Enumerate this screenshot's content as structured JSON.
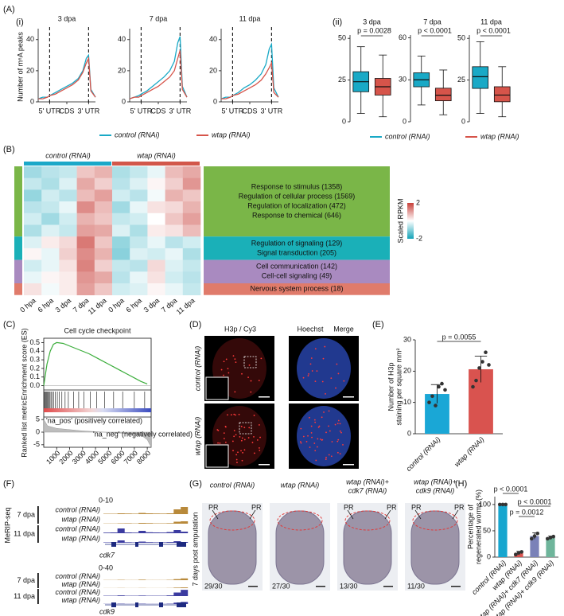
{
  "figure": {
    "panel_labels": [
      "(A)",
      "(B)",
      "(C)",
      "(D)",
      "(E)",
      "(F)",
      "(G)",
      "(H)"
    ],
    "sub_labels": [
      "(i)",
      "(ii)"
    ],
    "microscopy": {
      "col_labels": [
        {
          "text": "H3p / Cy3",
          "color": "#d62828"
        },
        {
          "text": "Hoechst",
          "color": "#2a4fb0"
        },
        {
          "text": "Merge",
          "color": "#111111"
        }
      ],
      "row_labels": [
        "control (RNAi)",
        "wtap (RNAi)"
      ]
    },
    "tracks": {
      "assay": "MeRIP-seq",
      "genes": [
        {
          "name": "cdk7",
          "range": "0-10",
          "ylim": [
            0,
            10
          ],
          "groups": [
            {
              "label": "7 dpa",
              "color": "#b8893a",
              "tracks": [
                {
                  "name": "control (RNAi)",
                  "values": [
                    0.5,
                    0.5,
                    1,
                    0.8,
                    0.6,
                    1.5,
                    1,
                    0.8,
                    0.7,
                    1,
                    6,
                    9
                  ]
                },
                {
                  "name": "wtap (RNAi)",
                  "values": [
                    0.3,
                    0.3,
                    0.5,
                    0.6,
                    0.4,
                    1,
                    0.8,
                    0.5,
                    0.5,
                    0.7,
                    2.5,
                    3
                  ]
                }
              ]
            },
            {
              "label": "11 dpa",
              "color": "#3b3ba0",
              "tracks": [
                {
                  "name": "control (RNAi)",
                  "values": [
                    0.8,
                    1,
                    6,
                    1,
                    0.8,
                    3,
                    1.2,
                    1,
                    0.9,
                    1.5,
                    4,
                    2
                  ]
                },
                {
                  "name": "wtap (RNAi)",
                  "values": [
                    0.5,
                    0.6,
                    3,
                    0.7,
                    0.5,
                    1.5,
                    0.8,
                    0.6,
                    0.6,
                    0.9,
                    2,
                    1
                  ]
                }
              ]
            }
          ]
        },
        {
          "name": "cdk9",
          "range": "0-40",
          "ylim": [
            0,
            40
          ],
          "groups": [
            {
              "label": "7 dpa",
              "color": "#b8893a",
              "tracks": [
                {
                  "name": "control (RNAi)",
                  "values": [
                    1,
                    1,
                    2,
                    1,
                    1,
                    3,
                    1,
                    1,
                    1,
                    2,
                    6,
                    10
                  ]
                },
                {
                  "name": "wtap (RNAi)",
                  "values": [
                    0.5,
                    0.5,
                    1,
                    0.5,
                    0.5,
                    1,
                    0.5,
                    0.5,
                    0.5,
                    1,
                    3,
                    4
                  ]
                }
              ]
            },
            {
              "label": "11 dpa",
              "color": "#3b3ba0",
              "tracks": [
                {
                  "name": "control (RNAi)",
                  "values": [
                    2,
                    2,
                    4,
                    2,
                    2,
                    3,
                    2,
                    2,
                    2,
                    4,
                    20,
                    35
                  ]
                },
                {
                  "name": "wtap (RNAi)",
                  "values": [
                    1,
                    1,
                    2,
                    1,
                    1,
                    2,
                    1,
                    1,
                    1,
                    2,
                    8,
                    12
                  ]
                }
              ]
            }
          ]
        }
      ]
    },
    "worms": {
      "side_label": "7 days post amputation",
      "panels": [
        {
          "title": [
            "control (RNAi)"
          ],
          "count": "29/30",
          "marks": [
            "PR",
            "PR"
          ]
        },
        {
          "title": [
            "wtap (RNAi)"
          ],
          "count": "27/30",
          "marks": []
        },
        {
          "title": [
            "wtap (RNAi)+",
            "cdk7 (RNAi)"
          ],
          "count": "13/30",
          "marks": [
            "PR",
            "PR"
          ]
        },
        {
          "title": [
            "wtap (RNAi)+",
            "cdk9 (RNAi)"
          ],
          "count": "11/30",
          "marks": [
            "PR",
            "PR"
          ]
        }
      ]
    }
  },
  "chart_data": [
    {
      "type": "line",
      "title": "3 dpa",
      "ylabel": "Number of m⁶A peaks",
      "x": [
        0,
        8,
        16,
        20,
        30,
        40,
        50,
        60,
        70,
        78,
        84,
        88,
        92,
        100
      ],
      "xlim": [
        0,
        100
      ],
      "xticks": [
        {
          "value": 20,
          "label": "5' UTR"
        },
        {
          "value": 50,
          "label": "CDS"
        },
        {
          "value": 88,
          "label": "3' UTR"
        }
      ],
      "boundaries": [
        20,
        88
      ],
      "ylim": [
        0,
        45
      ],
      "yticks": [
        0,
        20,
        40
      ],
      "series": [
        {
          "name": "control (RNAi)",
          "color": "#19a9c6",
          "values": [
            2,
            3,
            3,
            4,
            6,
            8,
            10,
            12,
            15,
            20,
            28,
            30,
            8,
            3
          ]
        },
        {
          "name": "wtap (RNAi)",
          "color": "#d6544a",
          "values": [
            2,
            2,
            3,
            4,
            5,
            7,
            9,
            11,
            14,
            19,
            25,
            28,
            7,
            3
          ]
        }
      ]
    },
    {
      "type": "line",
      "title": "7 dpa",
      "x": [
        0,
        8,
        16,
        20,
        30,
        40,
        50,
        60,
        70,
        78,
        84,
        88,
        92,
        100
      ],
      "xlim": [
        0,
        100
      ],
      "xticks": [
        {
          "value": 20,
          "label": "5' UTR"
        },
        {
          "value": 50,
          "label": "CDS"
        },
        {
          "value": 88,
          "label": "3' UTR"
        }
      ],
      "boundaries": [
        20,
        88
      ],
      "ylim": [
        0,
        45
      ],
      "yticks": [
        0,
        20,
        40
      ],
      "series": [
        {
          "color": "#19a9c6",
          "values": [
            2,
            3,
            4,
            5,
            7,
            10,
            13,
            16,
            20,
            26,
            38,
            42,
            10,
            3
          ]
        },
        {
          "color": "#d6544a",
          "values": [
            2,
            3,
            3,
            4,
            6,
            8,
            10,
            13,
            16,
            20,
            28,
            33,
            8,
            3
          ]
        }
      ]
    },
    {
      "type": "line",
      "title": "11 dpa",
      "x": [
        0,
        8,
        16,
        20,
        30,
        40,
        50,
        60,
        70,
        78,
        84,
        88,
        92,
        100
      ],
      "xlim": [
        0,
        100
      ],
      "xticks": [
        {
          "value": 20,
          "label": "5' UTR"
        },
        {
          "value": 50,
          "label": "CDS"
        },
        {
          "value": 88,
          "label": "3' UTR"
        }
      ],
      "boundaries": [
        20,
        88
      ],
      "ylim": [
        0,
        45
      ],
      "yticks": [
        0,
        20,
        40
      ],
      "series": [
        {
          "color": "#19a9c6",
          "values": [
            2,
            3,
            3,
            4,
            6,
            9,
            11,
            14,
            18,
            24,
            34,
            37,
            9,
            3
          ]
        },
        {
          "color": "#d6544a",
          "values": [
            2,
            2,
            3,
            4,
            5,
            7,
            9,
            11,
            14,
            18,
            22,
            25,
            6,
            3
          ]
        }
      ]
    },
    {
      "type": "box",
      "title": "3 dpa",
      "annotation": "p = 0.0028",
      "ylim": [
        0,
        52
      ],
      "yticks": [
        0,
        25,
        50
      ],
      "series": [
        {
          "name": "control (RNAi)",
          "color": "#19a9c6",
          "stats": [
            5,
            18,
            24,
            30,
            45
          ]
        },
        {
          "name": "wtap (RNAi)",
          "color": "#d6544a",
          "stats": [
            3,
            16,
            21,
            26,
            40
          ]
        }
      ]
    },
    {
      "type": "box",
      "title": "7 dpa",
      "annotation": "p < 0.0001",
      "ylim": [
        0,
        62
      ],
      "yticks": [
        0,
        30,
        60
      ],
      "series": [
        {
          "color": "#19a9c6",
          "stats": [
            12,
            25,
            30,
            35,
            47
          ]
        },
        {
          "color": "#d6544a",
          "stats": [
            5,
            15,
            19,
            24,
            37
          ]
        }
      ]
    },
    {
      "type": "box",
      "title": "11 dpa",
      "annotation": "p < 0.0001",
      "ylim": [
        0,
        52
      ],
      "yticks": [
        0,
        25,
        50
      ],
      "series": [
        {
          "color": "#19a9c6",
          "stats": [
            5,
            20,
            27,
            33,
            48
          ]
        },
        {
          "color": "#d6544a",
          "stats": [
            3,
            12,
            16,
            21,
            33
          ]
        }
      ]
    },
    {
      "type": "heatmap",
      "columns": [
        "0 hpa",
        "6 hpa",
        "3 dpa",
        "7 dpa",
        "11 dpa",
        "0 hpa",
        "6 hpa",
        "3 dpa",
        "7 dpa",
        "11 dpa"
      ],
      "groups": [
        {
          "label": "control (RNAi)",
          "color": "#1ba8c8"
        },
        {
          "label": "wtap (RNAi)",
          "color": "#d2574a"
        }
      ],
      "colorbar": {
        "label": "Scaled RPKM",
        "vlim": [
          -2,
          2
        ],
        "ticks": [
          2,
          -2
        ],
        "colors": [
          "#14a3b8",
          "#ffffff",
          "#c8403a"
        ]
      },
      "clusters": [
        {
          "color": "#7ab648",
          "terms": [
            "Response to stimulus (1358)",
            "Regulation of cellular process (1569)",
            "Regulation of localization (472)",
            "Response to chemical (646)"
          ],
          "values": [
            [
              -0.8,
              -0.6,
              -0.5,
              0.6,
              0.8,
              -0.7,
              -0.5,
              -0.2,
              0.7,
              0.9
            ],
            [
              -0.5,
              -0.7,
              -0.3,
              0.9,
              0.5,
              -0.6,
              -0.3,
              0.1,
              0.5,
              1.1
            ],
            [
              -0.9,
              -0.4,
              -0.6,
              0.7,
              1.0,
              -0.4,
              -0.6,
              -0.1,
              0.8,
              0.6
            ],
            [
              -0.6,
              -0.5,
              -0.2,
              1.2,
              0.7,
              -0.8,
              -0.2,
              0.3,
              0.4,
              0.8
            ],
            [
              -0.4,
              -0.8,
              -0.4,
              0.8,
              0.6,
              -0.5,
              -0.4,
              0.0,
              0.6,
              1.0
            ],
            [
              -0.7,
              -0.3,
              -0.5,
              1.0,
              0.9,
              -0.3,
              -0.7,
              0.2,
              0.3,
              0.7
            ]
          ]
        },
        {
          "color": "#1ab0b8",
          "terms": [
            "Regulation of signaling (129)",
            "Signal transduction (205)"
          ],
          "values": [
            [
              -0.3,
              0.2,
              0.4,
              1.4,
              0.6,
              -0.9,
              -0.5,
              -0.2,
              -0.6,
              -0.4
            ],
            [
              0.1,
              -0.2,
              0.5,
              1.2,
              0.8,
              -1.0,
              -0.3,
              -0.4,
              -0.2,
              -0.7
            ]
          ]
        },
        {
          "color": "#a98ac0",
          "terms": [
            "Cell communication (142)",
            "Cell-cell signaling (49)"
          ],
          "values": [
            [
              -0.4,
              -0.2,
              0.3,
              1.3,
              0.5,
              -0.5,
              -0.6,
              0.4,
              -0.3,
              -0.5
            ],
            [
              -0.2,
              0.1,
              0.2,
              1.1,
              0.9,
              -0.6,
              -0.2,
              0.3,
              -0.4,
              -0.6
            ]
          ]
        },
        {
          "color": "#e07b6b",
          "terms": [
            "Nervous system process (18)"
          ],
          "values": [
            [
              0.3,
              -0.1,
              0.2,
              1.0,
              0.6,
              -0.4,
              -0.3,
              0.1,
              -0.2,
              -0.5
            ]
          ]
        }
      ]
    },
    {
      "type": "gsea",
      "title": "Cell cycle checkpoint",
      "ylabel": "Enrichment score (ES)",
      "color": "#3cae3c",
      "x": [
        0,
        250,
        500,
        750,
        1000,
        1500,
        2000,
        2500,
        3000,
        3500,
        4000,
        4500,
        5000,
        5500,
        6000,
        6500,
        7000,
        7500,
        8000
      ],
      "values": [
        0,
        0.25,
        0.4,
        0.48,
        0.5,
        0.49,
        0.46,
        0.43,
        0.4,
        0.37,
        0.33,
        0.29,
        0.25,
        0.21,
        0.17,
        0.13,
        0.09,
        0.05,
        0.02
      ],
      "xlim": [
        0,
        8300
      ],
      "xticks": [
        1000,
        2000,
        3000,
        4000,
        5000,
        6000,
        7000,
        8000
      ],
      "ylim": [
        -0.05,
        0.55
      ],
      "yticks": [
        {
          "value": 0,
          "label": "0.0"
        },
        0.1,
        0.2,
        0.3,
        0.4,
        0.5
      ],
      "hits": [
        30,
        80,
        150,
        200,
        260,
        320,
        400,
        480,
        560,
        650,
        780,
        900,
        1050,
        1200,
        1400,
        1650,
        1900,
        2300,
        2700,
        3100,
        3600,
        4100,
        4700,
        5400,
        6100,
        7000,
        7800
      ],
      "metric_label": "Ranked list metric",
      "metric_x": [
        0,
        300,
        1000,
        2000,
        3000,
        4000,
        5000,
        6000,
        7000,
        7600,
        8000,
        8300
      ],
      "metric": [
        5,
        2.5,
        1.5,
        1,
        0.5,
        0.2,
        -0.1,
        -0.4,
        -0.9,
        -1.5,
        -3,
        -6
      ],
      "metric_ylim": [
        -6,
        6
      ],
      "metric_yticks": [
        5,
        0,
        -5
      ],
      "pos_label": "'na_pos' (positively correlated)",
      "neg_label": "'na_neg' (negatively correlated)"
    },
    {
      "type": "bar",
      "ylabel": [
        "Number of H3p",
        "staining per square mm²"
      ],
      "categories": [
        "control (RNAi)",
        "wtap (RNAi)"
      ],
      "values": [
        12.7,
        20.6
      ],
      "errors": [
        3,
        4.2
      ],
      "colors": [
        "#1aa7d6",
        "#d9534f"
      ],
      "points": [
        [
          10,
          12,
          9,
          15,
          16,
          14
        ],
        [
          15,
          17,
          21,
          23,
          26,
          22
        ]
      ],
      "ylim": [
        0,
        30
      ],
      "yticks": [
        0,
        10,
        20,
        30
      ],
      "annotations": [
        "p = 0.0055"
      ]
    },
    {
      "type": "bar",
      "ylabel": [
        "Percentage of",
        "regenerated worms (%)"
      ],
      "categories": [
        "control (RNAi)",
        "wtap (RNAi)",
        "wtap (RNAi)+ cdk7 (RNAi)",
        "wtap (RNAi)+ cdk9 (RNAi)"
      ],
      "values": [
        100,
        8,
        40,
        37
      ],
      "errors": [
        0,
        3,
        6,
        3
      ],
      "colors": [
        "#17a6cf",
        "#d9534f",
        "#7a82b8",
        "#6fb59b"
      ],
      "points": [
        [
          100,
          100,
          100
        ],
        [
          5,
          8,
          10
        ],
        [
          35,
          40,
          45
        ],
        [
          35,
          37,
          39
        ]
      ],
      "ylim": [
        0,
        115
      ],
      "yticks": [
        0,
        50,
        100
      ],
      "annotations": [
        "p < 0.0001",
        "p = 0.0012",
        "p < 0.0001"
      ]
    }
  ]
}
